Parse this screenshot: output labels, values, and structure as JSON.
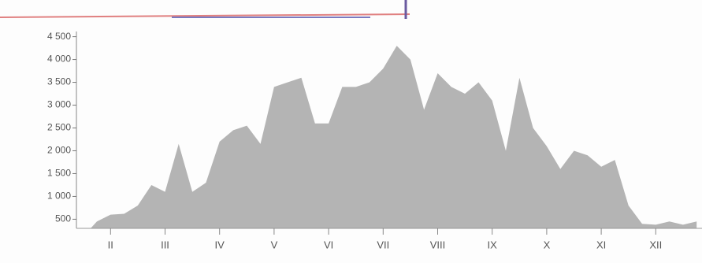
{
  "chart_data": {
    "type": "area",
    "color": "#b4b4b4",
    "categories": [
      null,
      "II",
      null,
      null,
      null,
      "III",
      null,
      null,
      null,
      "IV",
      null,
      null,
      null,
      "V",
      null,
      null,
      null,
      "VI",
      null,
      null,
      null,
      "VII",
      null,
      null,
      null,
      "VIII",
      null,
      null,
      null,
      "IX",
      null,
      null,
      null,
      "X",
      null,
      null,
      null,
      "XI",
      null,
      null,
      null,
      "XII",
      null,
      null,
      null
    ],
    "values": [
      450,
      600,
      620,
      800,
      1250,
      1100,
      2150,
      1100,
      1300,
      2200,
      2450,
      2550,
      2150,
      3400,
      3500,
      3600,
      2600,
      2600,
      3400,
      3400,
      3500,
      3800,
      4300,
      4000,
      2900,
      3700,
      3400,
      3250,
      3500,
      3100,
      2000,
      3600,
      2500,
      2100,
      1600,
      2000,
      1900,
      1650,
      1800,
      800,
      400,
      380,
      450,
      380,
      450
    ],
    "ylim": [
      300,
      4700
    ],
    "yticks": [
      500,
      {
        "value": 1000,
        "label": "1 000"
      },
      {
        "value": 1500,
        "label": "1 500"
      },
      {
        "value": 2000,
        "label": "2 000"
      },
      {
        "value": 2500,
        "label": "2 500"
      },
      {
        "value": 3000,
        "label": "3 000"
      },
      {
        "value": 3500,
        "label": "3 500"
      },
      {
        "value": 4000,
        "label": "4 000"
      },
      {
        "value": 4500,
        "label": "4 500"
      }
    ]
  }
}
